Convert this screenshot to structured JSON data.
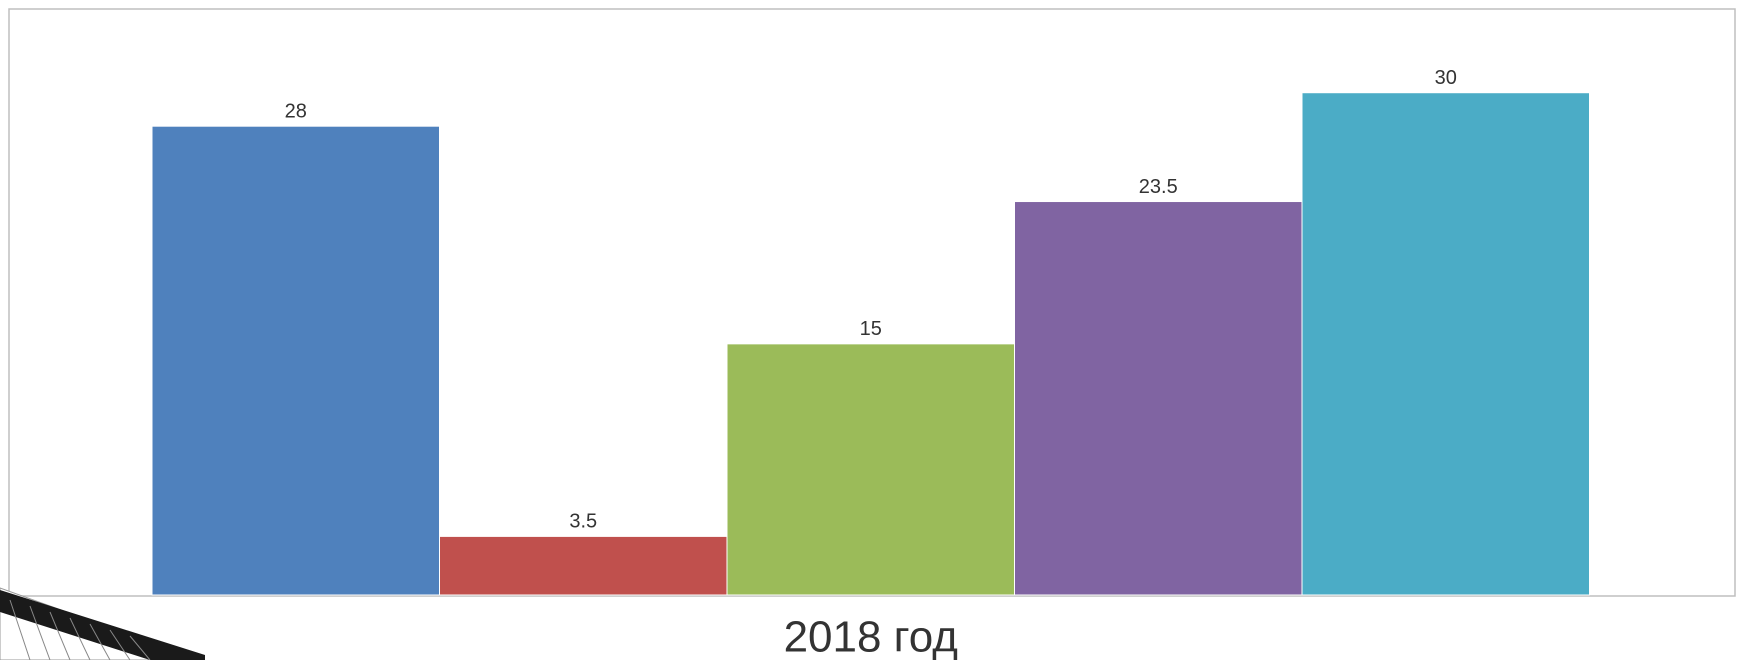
{
  "chart_data": {
    "type": "bar",
    "categories": [
      "2018 год"
    ],
    "series": [
      {
        "color": "#4f81bd",
        "values": [
          28
        ]
      },
      {
        "color": "#c0504d",
        "values": [
          3.5
        ]
      },
      {
        "color": "#9bbb59",
        "values": [
          15
        ]
      },
      {
        "color": "#8064a2",
        "values": [
          23.5
        ]
      },
      {
        "color": "#4bacc6",
        "values": [
          30
        ]
      }
    ],
    "ylim": [
      0,
      35
    ]
  }
}
